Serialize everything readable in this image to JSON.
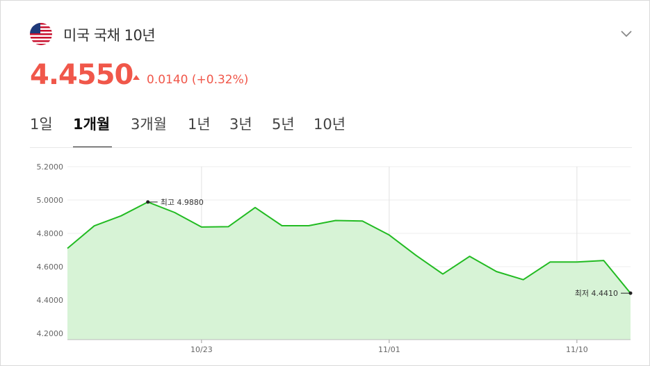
{
  "header": {
    "title": "미국 국채 10년",
    "price": "4.4550",
    "change": "0.0140 (+0.32%)",
    "flag_icon": "us-flag-icon",
    "expand_icon": "chevron-down-icon",
    "up_color": "#f0574a"
  },
  "tabs": [
    {
      "label": "1일",
      "active": false
    },
    {
      "label": "1개월",
      "active": true
    },
    {
      "label": "3개월",
      "active": false
    },
    {
      "label": "1년",
      "active": false
    },
    {
      "label": "3년",
      "active": false
    },
    {
      "label": "5년",
      "active": false
    },
    {
      "label": "10년",
      "active": false
    }
  ],
  "chart_data": {
    "type": "area",
    "line_color": "#22bb22",
    "fill_color": "#d7f3d6",
    "ylim": [
      4.2,
      5.2
    ],
    "y_ticks": [
      "5.2000",
      "5.0000",
      "4.8000",
      "4.6000",
      "4.4000",
      "4.2000"
    ],
    "x_ticks": [
      "10/23",
      "11/01",
      "11/10"
    ],
    "grid": true,
    "values": [
      4.71,
      4.845,
      4.905,
      4.988,
      4.925,
      4.838,
      4.84,
      4.955,
      4.846,
      4.846,
      4.877,
      4.874,
      4.79,
      4.668,
      4.556,
      4.662,
      4.571,
      4.522,
      4.628,
      4.628,
      4.637,
      4.441
    ],
    "annotations": {
      "high_label": "최고 4.9880",
      "low_label": "최저 4.4410"
    }
  }
}
